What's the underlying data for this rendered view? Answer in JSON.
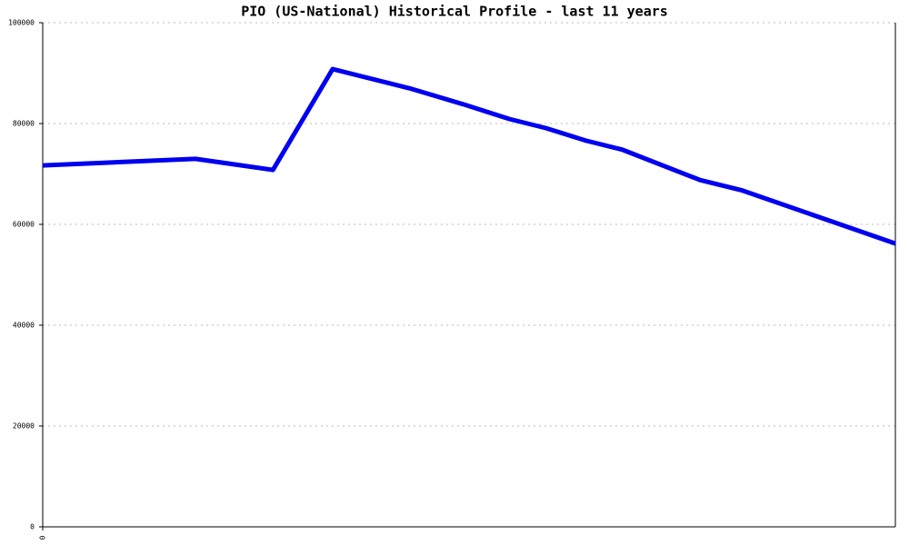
{
  "chart_data": {
    "type": "line",
    "title": "PIO (US-National) Historical Profile - last 11 years",
    "x": [
      0,
      1.97,
      2.97,
      3.74,
      4.73,
      5.43,
      6.02,
      6.49,
      7.01,
      7.48,
      8.48,
      9.01,
      11
    ],
    "series": [
      {
        "name": "PIO",
        "color": "#0000ee",
        "values": [
          71700,
          73000,
          70800,
          90800,
          87000,
          83800,
          80900,
          79100,
          76600,
          74800,
          68800,
          66800,
          56200
        ]
      }
    ],
    "xlim": [
      0,
      11
    ],
    "xticks": [
      0
    ],
    "ylim": [
      0,
      100000
    ],
    "yticks": [
      0,
      20000,
      40000,
      60000,
      80000,
      100000
    ],
    "grid": true
  }
}
